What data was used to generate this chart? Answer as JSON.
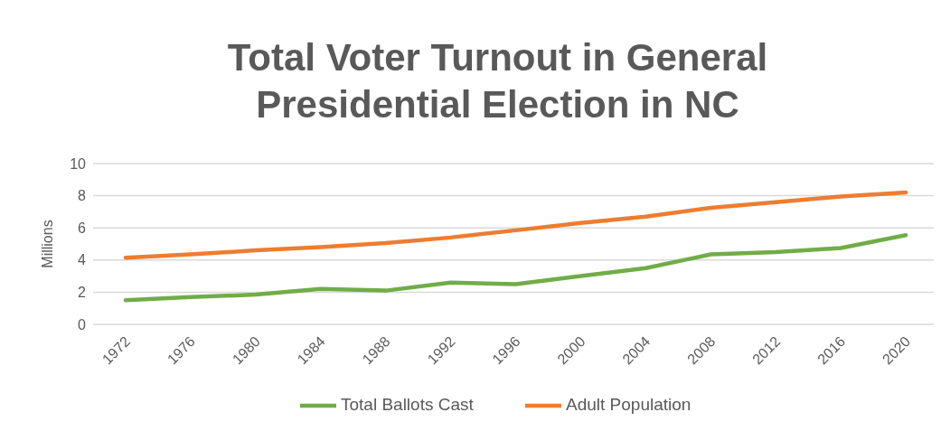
{
  "chart_data": {
    "type": "line",
    "title": "Total Voter Turnout in General Presidential Election in NC",
    "ylabel": "Millions",
    "categories": [
      "1972",
      "1976",
      "1980",
      "1984",
      "1988",
      "1992",
      "1996",
      "2000",
      "2004",
      "2008",
      "2012",
      "2016",
      "2020"
    ],
    "series": [
      {
        "name": "Total Ballots Cast",
        "color": "#70ad47",
        "values": [
          1.5,
          1.7,
          1.85,
          2.2,
          2.1,
          2.6,
          2.5,
          3.0,
          3.5,
          4.35,
          4.5,
          4.75,
          5.55
        ]
      },
      {
        "name": "Adult Population",
        "color": "#ed7d31",
        "values": [
          4.15,
          4.35,
          4.6,
          4.8,
          5.05,
          5.4,
          5.85,
          6.3,
          6.7,
          7.25,
          7.6,
          7.95,
          8.2
        ]
      }
    ],
    "ylim": [
      0,
      10
    ],
    "yticks": [
      0,
      2,
      4,
      6,
      8,
      10
    ],
    "grid": "y",
    "legend": "bottom",
    "marker": "none",
    "line_style": "solid"
  }
}
